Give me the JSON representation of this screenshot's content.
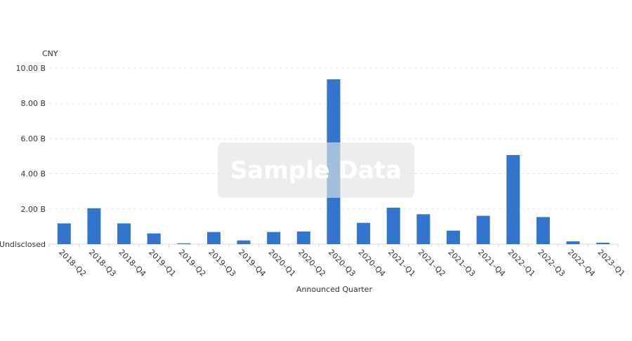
{
  "chart_data": {
    "type": "bar",
    "unit_label": "CNY",
    "xlabel": "Announced Quarter",
    "ylabel": "",
    "ylim": [
      0,
      10
    ],
    "yticks": [
      {
        "value": 0,
        "label": "Undisclosed"
      },
      {
        "value": 2,
        "label": "2.00 B"
      },
      {
        "value": 4,
        "label": "4.00 B"
      },
      {
        "value": 6,
        "label": "6.00 B"
      },
      {
        "value": 8,
        "label": "8.00 B"
      },
      {
        "value": 10,
        "label": "10.00 B"
      }
    ],
    "grid": true,
    "categories": [
      "2018–Q2",
      "2018–Q3",
      "2018–Q4",
      "2019–Q1",
      "2019–Q2",
      "2019–Q3",
      "2019–Q4",
      "2020–Q1",
      "2020–Q2",
      "2020–Q3",
      "2020–Q4",
      "2021–Q1",
      "2021–Q2",
      "2021–Q3",
      "2021–Q4",
      "2022–Q1",
      "2022–Q3",
      "2022–Q4",
      "2023–Q1"
    ],
    "values": [
      1.18,
      2.04,
      1.18,
      0.61,
      0.05,
      0.69,
      0.21,
      0.69,
      0.72,
      9.36,
      1.21,
      2.07,
      1.7,
      0.77,
      1.61,
      5.06,
      1.54,
      0.16,
      0.08
    ],
    "bar_color": "#3375cc"
  },
  "watermark": "Sample Data"
}
